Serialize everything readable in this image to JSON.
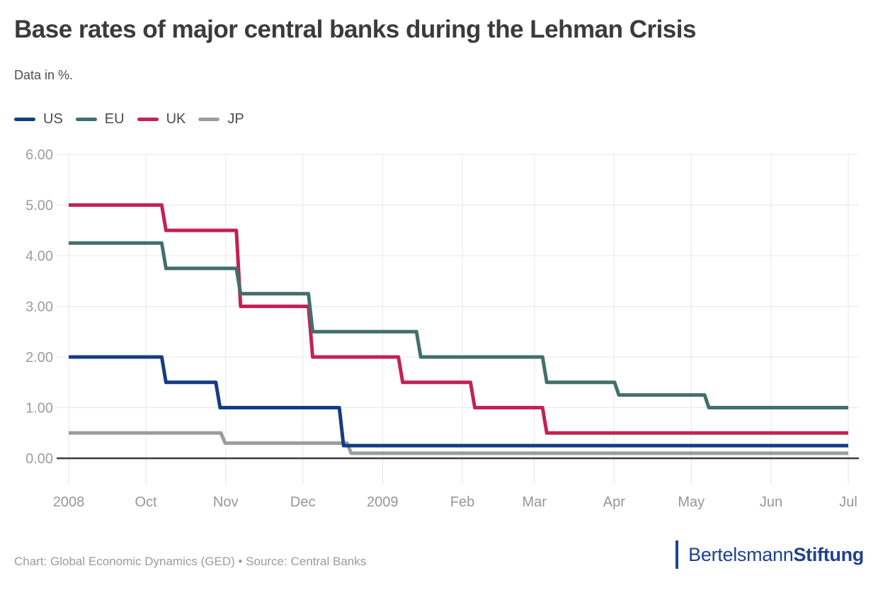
{
  "chart_data": {
    "type": "line",
    "step": true,
    "title": "Base rates of major central banks during the Lehman Crisis",
    "subtitle": "Data in %.",
    "xlabel": "",
    "ylabel": "",
    "ylim": [
      0,
      6
    ],
    "grid": true,
    "legend_position": "top-left",
    "x_range": [
      "2008-09-01",
      "2009-07-01"
    ],
    "x_ticks": [
      {
        "date": "2008-09-01",
        "label": "2008"
      },
      {
        "date": "2008-10-01",
        "label": "Oct"
      },
      {
        "date": "2008-11-01",
        "label": "Nov"
      },
      {
        "date": "2008-12-01",
        "label": "Dec"
      },
      {
        "date": "2009-01-01",
        "label": "2009"
      },
      {
        "date": "2009-02-01",
        "label": "Feb"
      },
      {
        "date": "2009-03-01",
        "label": "Mar"
      },
      {
        "date": "2009-04-01",
        "label": "Apr"
      },
      {
        "date": "2009-05-01",
        "label": "May"
      },
      {
        "date": "2009-06-01",
        "label": "Jun"
      },
      {
        "date": "2009-07-01",
        "label": "Jul"
      }
    ],
    "y_ticks": [
      {
        "value": 6,
        "label": "6.00"
      },
      {
        "value": 5,
        "label": "5.00"
      },
      {
        "value": 4,
        "label": "4.00"
      },
      {
        "value": 3,
        "label": "3.00"
      },
      {
        "value": 2,
        "label": "2.00"
      },
      {
        "value": 1,
        "label": "1.00"
      },
      {
        "value": 0,
        "label": "0.00"
      }
    ],
    "series": [
      {
        "name": "US",
        "color": "#143c85",
        "steps": [
          [
            "2008-09-01",
            2.0
          ],
          [
            "2008-10-08",
            1.5
          ],
          [
            "2008-10-29",
            1.0
          ],
          [
            "2008-12-16",
            0.25
          ]
        ]
      },
      {
        "name": "EU",
        "color": "#41706c",
        "steps": [
          [
            "2008-09-01",
            4.25
          ],
          [
            "2008-10-08",
            3.75
          ],
          [
            "2008-11-06",
            3.25
          ],
          [
            "2008-12-04",
            2.5
          ],
          [
            "2009-01-15",
            2.0
          ],
          [
            "2009-03-05",
            1.5
          ],
          [
            "2009-04-02",
            1.25
          ],
          [
            "2009-05-07",
            1.0
          ]
        ]
      },
      {
        "name": "UK",
        "color": "#c42155",
        "steps": [
          [
            "2008-09-01",
            5.0
          ],
          [
            "2008-10-08",
            4.5
          ],
          [
            "2008-11-06",
            3.0
          ],
          [
            "2008-12-04",
            2.0
          ],
          [
            "2009-01-08",
            1.5
          ],
          [
            "2009-02-05",
            1.0
          ],
          [
            "2009-03-05",
            0.5
          ]
        ]
      },
      {
        "name": "JP",
        "color": "#9d9d9d",
        "steps": [
          [
            "2008-09-01",
            0.5
          ],
          [
            "2008-10-31",
            0.3
          ],
          [
            "2008-12-19",
            0.1
          ]
        ]
      }
    ],
    "draw_order": [
      "JP",
      "UK",
      "EU",
      "US"
    ],
    "axis_color": "#3c3c3c",
    "gridline_color": "#e7e7e7",
    "tick_label_color": "#969696"
  },
  "footer": {
    "credit": "Chart: Global Economic Dynamics (GED) • Source: Central Banks",
    "logo": {
      "part1": "Bertelsmann",
      "part2": "Stiftung",
      "color": "#1f418f"
    }
  }
}
